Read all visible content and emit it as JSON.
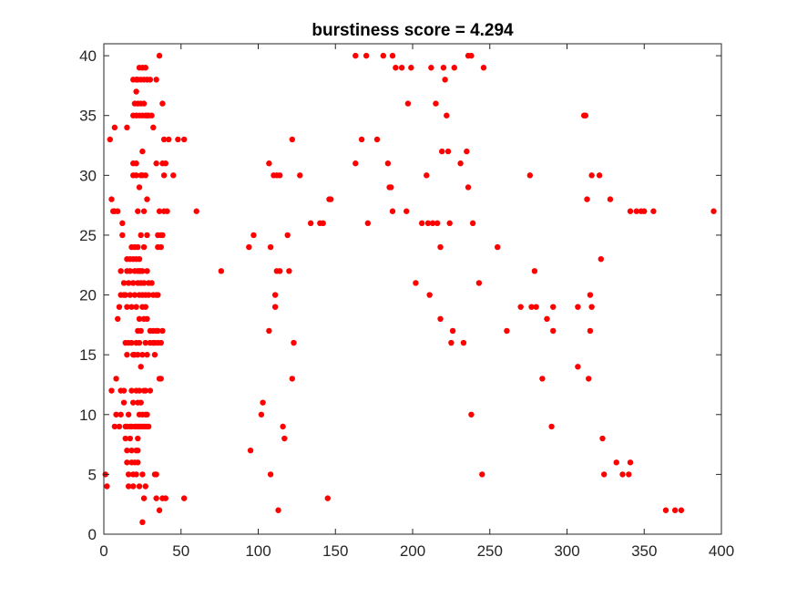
{
  "chart_data": {
    "type": "scatter",
    "title": "burstiness score = 4.294",
    "xlabel": "",
    "ylabel": "",
    "xlim": [
      0,
      400
    ],
    "ylim": [
      0,
      41
    ],
    "xticks": [
      0,
      50,
      100,
      150,
      200,
      250,
      300,
      350,
      400
    ],
    "yticks": [
      0,
      5,
      10,
      15,
      20,
      25,
      30,
      35,
      40
    ],
    "grid": false,
    "legend": "none",
    "marker_color": "#ff0000",
    "points": [
      [
        1,
        5
      ],
      [
        2,
        4
      ],
      [
        4,
        33
      ],
      [
        5,
        28
      ],
      [
        5,
        12
      ],
      [
        6,
        27
      ],
      [
        7,
        34
      ],
      [
        7,
        27
      ],
      [
        7,
        9
      ],
      [
        8,
        13
      ],
      [
        8,
        10
      ],
      [
        9,
        27
      ],
      [
        9,
        18
      ],
      [
        10,
        19
      ],
      [
        10,
        9
      ],
      [
        11,
        20
      ],
      [
        11,
        22
      ],
      [
        11,
        10
      ],
      [
        11,
        12
      ],
      [
        12,
        25
      ],
      [
        12,
        26
      ],
      [
        13,
        21
      ],
      [
        13,
        20
      ],
      [
        13,
        11
      ],
      [
        13,
        12
      ],
      [
        14,
        16
      ],
      [
        14,
        20
      ],
      [
        14,
        9
      ],
      [
        14,
        8
      ],
      [
        15,
        15
      ],
      [
        15,
        23
      ],
      [
        15,
        22
      ],
      [
        15,
        19
      ],
      [
        15,
        9
      ],
      [
        15,
        7
      ],
      [
        15,
        6
      ],
      [
        15,
        34
      ],
      [
        16,
        21
      ],
      [
        16,
        16
      ],
      [
        16,
        10
      ],
      [
        16,
        5
      ],
      [
        16,
        4
      ],
      [
        17,
        22
      ],
      [
        17,
        23
      ],
      [
        17,
        20
      ],
      [
        17,
        9
      ],
      [
        17,
        8
      ],
      [
        18,
        24
      ],
      [
        18,
        19
      ],
      [
        18,
        16
      ],
      [
        18,
        12
      ],
      [
        18,
        9
      ],
      [
        18,
        7
      ],
      [
        18,
        6
      ],
      [
        19,
        30
      ],
      [
        19,
        31
      ],
      [
        19,
        35
      ],
      [
        19,
        38
      ],
      [
        19,
        23
      ],
      [
        19,
        21
      ],
      [
        19,
        15
      ],
      [
        19,
        11
      ],
      [
        19,
        5
      ],
      [
        19,
        4
      ],
      [
        20,
        36
      ],
      [
        20,
        24
      ],
      [
        20,
        22
      ],
      [
        20,
        20
      ],
      [
        20,
        15
      ],
      [
        20,
        9
      ],
      [
        20,
        6
      ],
      [
        21,
        37
      ],
      [
        21,
        35
      ],
      [
        21,
        38
      ],
      [
        21,
        30
      ],
      [
        21,
        31
      ],
      [
        21,
        23
      ],
      [
        21,
        19
      ],
      [
        21,
        16
      ],
      [
        21,
        12
      ],
      [
        21,
        9
      ],
      [
        21,
        7
      ],
      [
        21,
        5
      ],
      [
        22,
        36
      ],
      [
        22,
        38
      ],
      [
        22,
        27
      ],
      [
        22,
        24
      ],
      [
        22,
        22
      ],
      [
        22,
        21
      ],
      [
        22,
        17
      ],
      [
        22,
        15
      ],
      [
        22,
        11
      ],
      [
        22,
        9
      ],
      [
        22,
        8
      ],
      [
        22,
        7
      ],
      [
        22,
        6
      ],
      [
        23,
        39
      ],
      [
        23,
        35
      ],
      [
        23,
        29
      ],
      [
        23,
        23
      ],
      [
        23,
        22
      ],
      [
        23,
        20
      ],
      [
        23,
        18
      ],
      [
        23,
        16
      ],
      [
        23,
        12
      ],
      [
        23,
        10
      ],
      [
        23,
        9
      ],
      [
        23,
        4
      ],
      [
        24,
        36
      ],
      [
        24,
        38
      ],
      [
        24,
        30
      ],
      [
        24,
        25
      ],
      [
        24,
        22
      ],
      [
        24,
        21
      ],
      [
        24,
        17
      ],
      [
        24,
        14
      ],
      [
        24,
        11
      ],
      [
        24,
        9
      ],
      [
        25,
        39
      ],
      [
        25,
        35
      ],
      [
        25,
        32
      ],
      [
        25,
        30
      ],
      [
        25,
        22
      ],
      [
        25,
        20
      ],
      [
        25,
        19
      ],
      [
        25,
        15
      ],
      [
        25,
        10
      ],
      [
        25,
        9
      ],
      [
        25,
        5
      ],
      [
        25,
        1
      ],
      [
        26,
        38
      ],
      [
        26,
        36
      ],
      [
        26,
        27
      ],
      [
        26,
        24
      ],
      [
        26,
        21
      ],
      [
        26,
        18
      ],
      [
        26,
        12
      ],
      [
        26,
        9
      ],
      [
        26,
        3
      ],
      [
        27,
        39
      ],
      [
        27,
        35
      ],
      [
        27,
        30
      ],
      [
        27,
        20
      ],
      [
        27,
        19
      ],
      [
        27,
        16
      ],
      [
        27,
        12
      ],
      [
        27,
        10
      ],
      [
        27,
        9
      ],
      [
        27,
        4
      ],
      [
        28,
        38
      ],
      [
        28,
        35
      ],
      [
        28,
        28
      ],
      [
        28,
        25
      ],
      [
        28,
        22
      ],
      [
        28,
        18
      ],
      [
        28,
        15
      ],
      [
        28,
        10
      ],
      [
        28,
        9
      ],
      [
        29,
        35
      ],
      [
        29,
        21
      ],
      [
        29,
        20
      ],
      [
        29,
        9
      ],
      [
        30,
        38
      ],
      [
        30,
        17
      ],
      [
        30,
        16
      ],
      [
        30,
        12
      ],
      [
        31,
        35
      ],
      [
        31,
        21
      ],
      [
        32,
        34
      ],
      [
        32,
        20
      ],
      [
        32,
        17
      ],
      [
        32,
        16
      ],
      [
        33,
        5
      ],
      [
        33,
        16
      ],
      [
        33,
        15
      ],
      [
        34,
        38
      ],
      [
        34,
        31
      ],
      [
        34,
        20
      ],
      [
        34,
        17
      ],
      [
        34,
        3
      ],
      [
        34,
        5
      ],
      [
        35,
        25
      ],
      [
        35,
        24
      ],
      [
        35,
        20
      ],
      [
        35,
        17
      ],
      [
        35,
        16
      ],
      [
        36,
        40
      ],
      [
        36,
        27
      ],
      [
        36,
        2
      ],
      [
        36,
        13
      ],
      [
        37,
        25
      ],
      [
        37,
        16
      ],
      [
        37,
        13
      ],
      [
        37,
        24
      ],
      [
        38,
        36
      ],
      [
        38,
        31
      ],
      [
        38,
        25
      ],
      [
        38,
        3
      ],
      [
        38,
        17
      ],
      [
        39,
        33
      ],
      [
        39,
        27
      ],
      [
        39,
        30
      ],
      [
        40,
        31
      ],
      [
        40,
        3
      ],
      [
        41,
        27
      ],
      [
        42,
        33
      ],
      [
        45,
        30
      ],
      [
        48,
        33
      ],
      [
        52,
        33
      ],
      [
        52,
        3
      ],
      [
        60,
        27
      ],
      [
        76,
        22
      ],
      [
        94,
        24
      ],
      [
        95,
        7
      ],
      [
        97,
        25
      ],
      [
        102,
        10
      ],
      [
        103,
        11
      ],
      [
        107,
        31
      ],
      [
        107,
        17
      ],
      [
        108,
        24
      ],
      [
        108,
        5
      ],
      [
        110,
        30
      ],
      [
        111,
        20
      ],
      [
        111,
        19
      ],
      [
        112,
        30
      ],
      [
        112,
        22
      ],
      [
        113,
        2
      ],
      [
        114,
        22
      ],
      [
        114,
        30
      ],
      [
        116,
        9
      ],
      [
        117,
        8
      ],
      [
        119,
        25
      ],
      [
        120,
        22
      ],
      [
        122,
        13
      ],
      [
        122,
        33
      ],
      [
        123,
        16
      ],
      [
        127,
        30
      ],
      [
        134,
        26
      ],
      [
        140,
        26
      ],
      [
        142,
        26
      ],
      [
        145,
        3
      ],
      [
        146,
        28
      ],
      [
        147,
        28
      ],
      [
        163,
        31
      ],
      [
        163,
        40
      ],
      [
        167,
        33
      ],
      [
        170,
        40
      ],
      [
        171,
        26
      ],
      [
        177,
        33
      ],
      [
        181,
        40
      ],
      [
        184,
        31
      ],
      [
        185,
        29
      ],
      [
        186,
        29
      ],
      [
        187,
        40
      ],
      [
        187,
        27
      ],
      [
        189,
        39
      ],
      [
        193,
        39
      ],
      [
        196,
        27
      ],
      [
        197,
        36
      ],
      [
        199,
        39
      ],
      [
        202,
        21
      ],
      [
        206,
        26
      ],
      [
        209,
        30
      ],
      [
        210,
        26
      ],
      [
        211,
        20
      ],
      [
        212,
        39
      ],
      [
        213,
        26
      ],
      [
        215,
        36
      ],
      [
        216,
        26
      ],
      [
        218,
        18
      ],
      [
        218,
        24
      ],
      [
        219,
        32
      ],
      [
        220,
        39
      ],
      [
        221,
        38
      ],
      [
        222,
        35
      ],
      [
        223,
        32
      ],
      [
        224,
        26
      ],
      [
        225,
        16
      ],
      [
        226,
        17
      ],
      [
        227,
        39
      ],
      [
        231,
        31
      ],
      [
        233,
        16
      ],
      [
        235,
        32
      ],
      [
        236,
        29
      ],
      [
        236,
        40
      ],
      [
        238,
        40
      ],
      [
        238,
        10
      ],
      [
        239,
        26
      ],
      [
        243,
        21
      ],
      [
        245,
        5
      ],
      [
        246,
        39
      ],
      [
        255,
        24
      ],
      [
        261,
        17
      ],
      [
        270,
        19
      ],
      [
        276,
        30
      ],
      [
        277,
        19
      ],
      [
        279,
        22
      ],
      [
        280,
        19
      ],
      [
        284,
        13
      ],
      [
        287,
        18
      ],
      [
        290,
        9
      ],
      [
        291,
        19
      ],
      [
        291,
        17
      ],
      [
        307,
        14
      ],
      [
        307,
        19
      ],
      [
        311,
        35
      ],
      [
        312,
        35
      ],
      [
        313,
        28
      ],
      [
        314,
        13
      ],
      [
        315,
        20
      ],
      [
        315,
        17
      ],
      [
        316,
        30
      ],
      [
        316,
        19
      ],
      [
        321,
        30
      ],
      [
        322,
        23
      ],
      [
        323,
        8
      ],
      [
        324,
        5
      ],
      [
        328,
        28
      ],
      [
        332,
        6
      ],
      [
        336,
        5
      ],
      [
        340,
        5
      ],
      [
        341,
        6
      ],
      [
        341,
        27
      ],
      [
        345,
        27
      ],
      [
        348,
        27
      ],
      [
        350,
        27
      ],
      [
        356,
        27
      ],
      [
        364,
        2
      ],
      [
        370,
        2
      ],
      [
        374,
        2
      ],
      [
        395,
        27
      ]
    ]
  }
}
